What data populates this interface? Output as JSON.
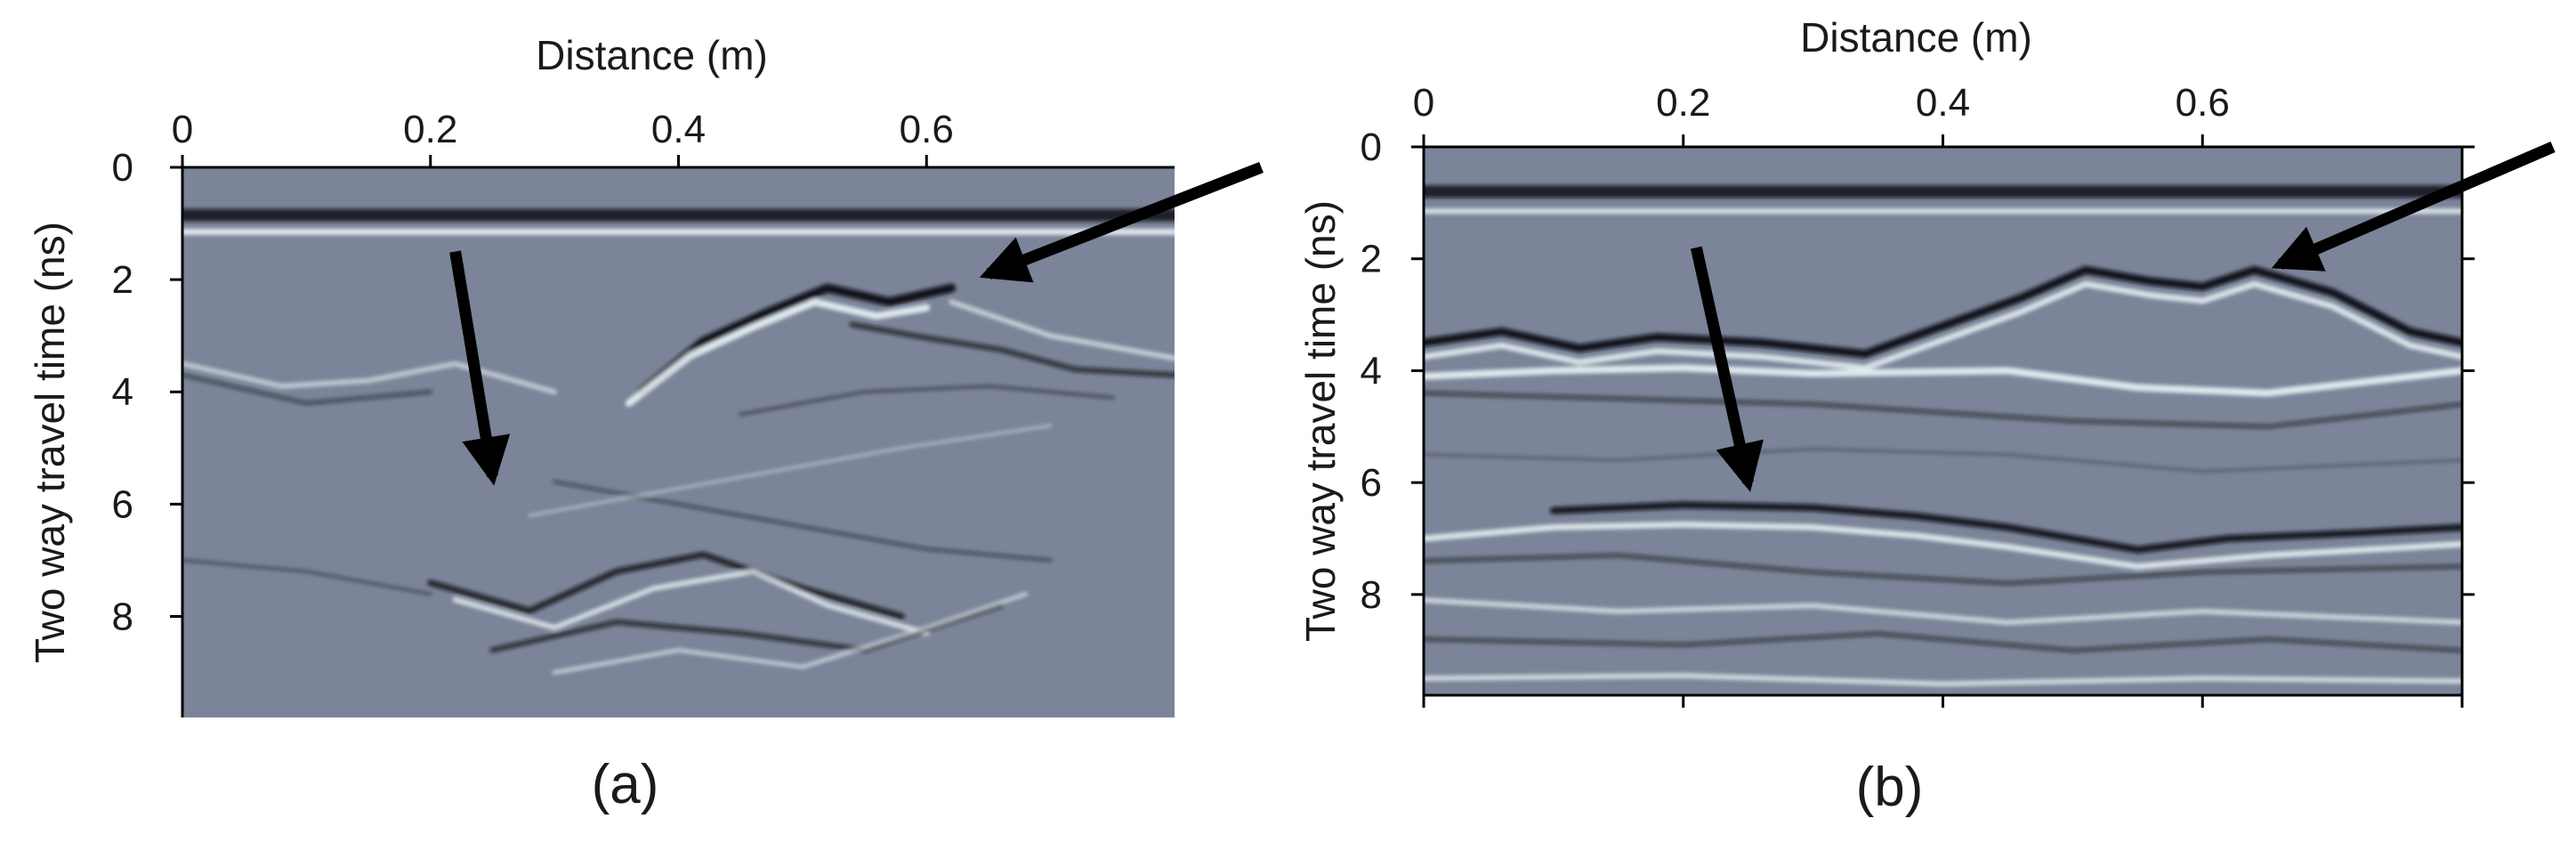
{
  "colors": {
    "background": "#7b8498",
    "dark_reflection": "#0d0f14",
    "bright_reflection": "#e9f3f6",
    "arrow": "#000000",
    "text": "#1a1a1a"
  },
  "chart_data": [
    {
      "type": "heatmap",
      "panel_label": "(a)",
      "xlabel": "Distance (m)",
      "ylabel": "Two way travel time (ns)",
      "x_ticks": [
        "0",
        "0.2",
        "0.4",
        "0.6"
      ],
      "x_tick_values": [
        0,
        0.2,
        0.4,
        0.6
      ],
      "y_ticks": [
        "0",
        "2",
        "4",
        "6",
        "8"
      ],
      "y_tick_values": [
        0,
        2,
        4,
        6,
        8
      ],
      "xlim": [
        0,
        0.8
      ],
      "ylim": [
        0,
        9.8
      ],
      "x_axis_position": "top",
      "grid": false,
      "annotations": [
        {
          "type": "arrow",
          "name": "vertical",
          "from": [
            0.22,
            1.5
          ],
          "to": [
            0.25,
            5.5
          ]
        },
        {
          "type": "arrow",
          "name": "hyperbola-apex",
          "from": [
            0.87,
            0.0
          ],
          "to": [
            0.65,
            1.9
          ]
        }
      ]
    },
    {
      "type": "heatmap",
      "panel_label": "(b)",
      "xlabel": "Distance (m)",
      "ylabel": "Two way travel time (ns)",
      "x_ticks": [
        "0",
        "0.2",
        "0.4",
        "0.6"
      ],
      "x_tick_values": [
        0,
        0.2,
        0.4,
        0.6
      ],
      "y_ticks": [
        "0",
        "2",
        "4",
        "6",
        "8"
      ],
      "y_tick_values": [
        0,
        2,
        4,
        6,
        8
      ],
      "xlim": [
        0,
        0.8
      ],
      "ylim": [
        0,
        9.8
      ],
      "x_axis_position": "top",
      "grid": false,
      "annotations": [
        {
          "type": "arrow",
          "name": "vertical",
          "from": [
            0.21,
            1.8
          ],
          "to": [
            0.25,
            6.0
          ]
        },
        {
          "type": "arrow",
          "name": "hyperbola-apex",
          "from": [
            0.87,
            0.0
          ],
          "to": [
            0.66,
            2.1
          ]
        }
      ]
    }
  ]
}
